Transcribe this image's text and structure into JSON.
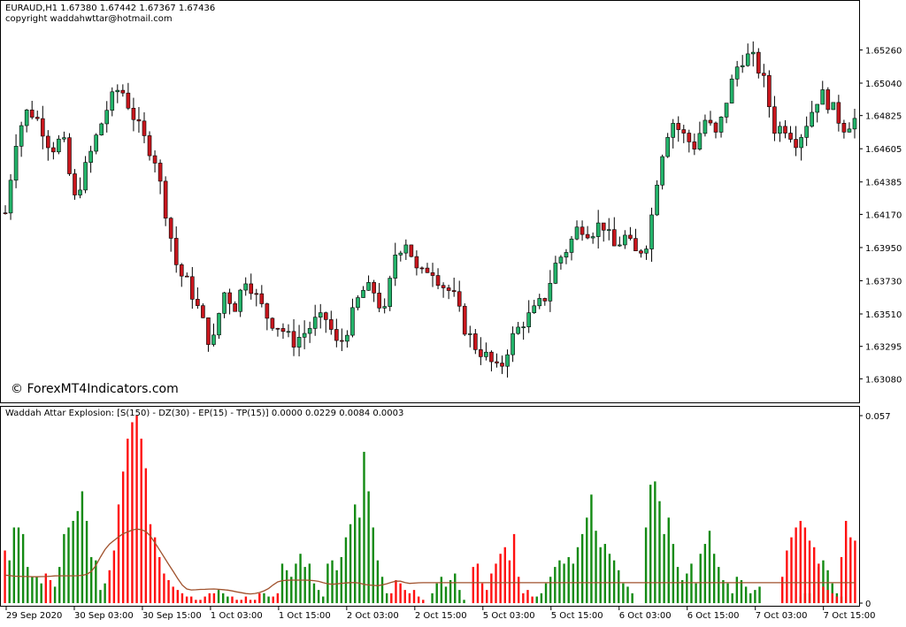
{
  "header": {
    "symbol_line": "EURAUD,H1  1.67380 1.67442 1.67367 1.67436",
    "copyright": "copyright waddahwttar@hotmail.com"
  },
  "watermark": "© ForexMT4Indicators.com",
  "indicator_label": "Waddah Attar Explosion: [S(150) - DZ(30) - EP(15) - TP(15)] 0.0000 0.0229 0.0084 0.0003",
  "colors": {
    "bull": "#23b36a",
    "bear": "#c8161d",
    "hist_up": "#138a13",
    "hist_down": "#ff1010",
    "explosion_line": "#a0522d",
    "wick": "#000000",
    "grid_frame": "#000000"
  },
  "chart_data": [
    {
      "type": "candlestick",
      "symbol": "EURAUD",
      "timeframe": "H1",
      "ylim": [
        1.63,
        1.6538
      ],
      "y_ticks": [
        "1.65260",
        "1.65040",
        "1.64825",
        "1.64605",
        "1.64385",
        "1.64170",
        "1.63950",
        "1.63730",
        "1.63510",
        "1.63295",
        "1.63080"
      ],
      "x_ticks": [
        "29 Sep 2020",
        "30 Sep 03:00",
        "30 Sep 15:00",
        "1 Oct 03:00",
        "1 Oct 15:00",
        "2 Oct 03:00",
        "2 Oct 15:00",
        "5 Oct 03:00",
        "5 Oct 15:00",
        "6 Oct 03:00",
        "6 Oct 15:00",
        "7 Oct 03:00",
        "7 Oct 15:00"
      ],
      "close_path": [
        1.6418,
        1.647,
        1.6487,
        1.6478,
        1.646,
        1.6468,
        1.6426,
        1.6448,
        1.647,
        1.649,
        1.6502,
        1.6485,
        1.6468,
        1.6455,
        1.6418,
        1.638,
        1.637,
        1.635,
        1.6328,
        1.6366,
        1.6356,
        1.6376,
        1.636,
        1.6347,
        1.6342,
        1.6332,
        1.6338,
        1.6346,
        1.6348,
        1.6328,
        1.6345,
        1.6366,
        1.6368,
        1.635,
        1.6392,
        1.64,
        1.6375,
        1.6383,
        1.6371,
        1.6364,
        1.6342,
        1.6329,
        1.6322,
        1.6312,
        1.6333,
        1.6345,
        1.6352,
        1.6362,
        1.6385,
        1.6395,
        1.641,
        1.6405,
        1.6412,
        1.6395,
        1.6402,
        1.639,
        1.64,
        1.6452,
        1.648,
        1.647,
        1.6462,
        1.648,
        1.6468,
        1.6498,
        1.652,
        1.6522,
        1.6508,
        1.6474,
        1.6475,
        1.6465,
        1.6481,
        1.6498,
        1.6488,
        1.6475,
        1.648
      ]
    },
    {
      "type": "bar",
      "name": "Waddah Attar Explosion",
      "ylim": [
        0,
        0.057
      ],
      "y_ticks": [
        "0.057",
        "0"
      ],
      "params": [
        "S(150)",
        "DZ(30)",
        "EP(15)",
        "TP(15)"
      ],
      "readout": [
        0.0,
        0.0229,
        0.0084,
        0.0003
      ],
      "trend_up": [
        0,
        0.013,
        0.023,
        0.023,
        0.021,
        0.011,
        0.008,
        0.008,
        0.006,
        0,
        0,
        0.005,
        0.011,
        0.021,
        0.023,
        0.025,
        0.028,
        0.034,
        0.025,
        0.014,
        0.013,
        0.004,
        0.006,
        0,
        0,
        0,
        0,
        0,
        0,
        0,
        0,
        0,
        0,
        0,
        0,
        0,
        0,
        0,
        0,
        0,
        0,
        0,
        0,
        0,
        0,
        0,
        0,
        0.004,
        0.003,
        0.002,
        0,
        0,
        0,
        0,
        0,
        0,
        0,
        0.003,
        0.002,
        0,
        0,
        0.012,
        0.01,
        0.008,
        0.012,
        0.015,
        0.011,
        0.012,
        0.006,
        0.004,
        0.002,
        0.012,
        0.013,
        0.01,
        0.014,
        0.02,
        0.024,
        0.03,
        0.026,
        0.046,
        0.034,
        0.023,
        0.013,
        0.008,
        0.003,
        0,
        0,
        0,
        0,
        0,
        0,
        0,
        0,
        0,
        0.003,
        0.006,
        0.008,
        0.005,
        0.007,
        0.009,
        0.004,
        0.001,
        0,
        0,
        0,
        0,
        0,
        0,
        0,
        0,
        0,
        0,
        0,
        0,
        0,
        0,
        0,
        0.002,
        0.003,
        0.006,
        0.008,
        0.011,
        0.013,
        0.012,
        0.014,
        0.012,
        0.017,
        0.021,
        0.026,
        0.033,
        0.022,
        0.017,
        0.018,
        0.015,
        0.013,
        0.01,
        0.006,
        0.005,
        0.003,
        0,
        0,
        0.023,
        0.036,
        0.037,
        0.031,
        0.021,
        0.026,
        0.018,
        0.011,
        0.007,
        0.009,
        0.012,
        0.006,
        0.015,
        0.018,
        0.022,
        0.015,
        0.011,
        0.007,
        0.006,
        0.003,
        0.008,
        0.007,
        0.005,
        0.003,
        0.004,
        0.005,
        0,
        0,
        0,
        0,
        0,
        0,
        0,
        0,
        0.002,
        0.003,
        0.003,
        0.006,
        0.011,
        0.013,
        0.01,
        0.006,
        0.003,
        0.002,
        0,
        0,
        0
      ],
      "trend_down": [
        0.016,
        0,
        0,
        0,
        0,
        0,
        0,
        0,
        0,
        0.009,
        0.007,
        0,
        0,
        0,
        0,
        0,
        0,
        0,
        0,
        0,
        0,
        0,
        0,
        0.01,
        0.016,
        0.03,
        0.04,
        0.05,
        0.055,
        0.057,
        0.05,
        0.041,
        0.024,
        0.02,
        0.014,
        0.009,
        0.007,
        0.005,
        0.004,
        0.003,
        0.002,
        0.002,
        0.001,
        0.001,
        0.002,
        0.003,
        0.003,
        0,
        0,
        0,
        0.002,
        0.001,
        0.001,
        0.002,
        0.001,
        0.001,
        0.003,
        0,
        0,
        0.002,
        0.003,
        0,
        0,
        0,
        0,
        0,
        0,
        0,
        0,
        0,
        0,
        0,
        0,
        0,
        0,
        0,
        0,
        0,
        0,
        0,
        0,
        0,
        0,
        0,
        0,
        0.003,
        0.007,
        0.006,
        0.004,
        0.003,
        0.004,
        0.002,
        0.001,
        0,
        0,
        0,
        0,
        0,
        0,
        0,
        0,
        0,
        0,
        0.011,
        0.012,
        0.006,
        0.004,
        0.009,
        0.012,
        0.015,
        0.017,
        0.013,
        0.021,
        0.008,
        0.003,
        0.004,
        0.002,
        0,
        0,
        0,
        0,
        0,
        0,
        0,
        0,
        0,
        0,
        0,
        0,
        0,
        0,
        0,
        0,
        0,
        0,
        0,
        0,
        0,
        0,
        0,
        0,
        0,
        0,
        0,
        0,
        0,
        0,
        0,
        0,
        0,
        0,
        0,
        0,
        0,
        0,
        0,
        0,
        0,
        0,
        0,
        0,
        0,
        0,
        0,
        0,
        0,
        0,
        0,
        0,
        0,
        0,
        0.008,
        0.016,
        0.02,
        0.023,
        0.025,
        0.023,
        0.019,
        0.017,
        0.012,
        0.005,
        0.004,
        0.003,
        0.002,
        0.014,
        0.025,
        0.02,
        0.019,
        0.018
      ],
      "explosion_line": [
        0.0085,
        0.0084,
        0.0082,
        0.0082,
        0.0081,
        0.0081,
        0.0081,
        0.008,
        0.008,
        0.0081,
        0.0081,
        0.0082,
        0.0083,
        0.0083,
        0.0083,
        0.0083,
        0.0083,
        0.0083,
        0.0084,
        0.0085,
        0.009,
        0.01,
        0.012,
        0.0145,
        0.0165,
        0.018,
        0.019,
        0.02,
        0.021,
        0.0215,
        0.022,
        0.0225,
        0.0225,
        0.0222,
        0.0215,
        0.02,
        0.018,
        0.016,
        0.014,
        0.012,
        0.01,
        0.008,
        0.006,
        0.0045,
        0.004,
        0.004,
        0.0041,
        0.0042,
        0.0042,
        0.0043,
        0.0043,
        0.0042,
        0.0041,
        0.004,
        0.0038,
        0.0035,
        0.0033,
        0.003,
        0.0028,
        0.0028,
        0.003,
        0.0033,
        0.0038,
        0.0045,
        0.0055,
        0.0064,
        0.0068,
        0.0069,
        0.007,
        0.007,
        0.007,
        0.007,
        0.007,
        0.0069,
        0.0068,
        0.0066,
        0.0062,
        0.0059,
        0.0057,
        0.0058,
        0.006,
        0.0061,
        0.0062,
        0.0063,
        0.0062,
        0.006,
        0.0056,
        0.0055,
        0.0054,
        0.0053,
        0.0055,
        0.0058,
        0.0062,
        0.0066,
        0.0068,
        0.0065,
        0.006,
        0.006,
        0.0061,
        0.0062,
        0.0062,
        0.0062,
        0.0062,
        0.0062,
        0.0062,
        0.0062,
        0.0062,
        0.0062,
        0.0062,
        0.0062,
        0.0062,
        0.0062,
        0.0062,
        0.0062,
        0.0062,
        0.0062,
        0.0062,
        0.0062,
        0.0062,
        0.0062,
        0.0062,
        0.0062,
        0.0062,
        0.0062,
        0.0062,
        0.0062,
        0.0062,
        0.0062,
        0.0062,
        0.0062,
        0.0062,
        0.0062,
        0.0062,
        0.0062,
        0.0062,
        0.0062,
        0.0062,
        0.0062,
        0.0062,
        0.0062,
        0.0062,
        0.0062,
        0.0062,
        0.0062,
        0.0062,
        0.0062,
        0.0062,
        0.0062,
        0.0062,
        0.0062,
        0.0062,
        0.0062,
        0.0062,
        0.0062,
        0.0062,
        0.0062,
        0.0062,
        0.0062,
        0.0062,
        0.0062,
        0.0062,
        0.0062,
        0.0062,
        0.0062,
        0.0062,
        0.0062,
        0.0062,
        0.0062,
        0.0062,
        0.0062,
        0.0062,
        0.0062,
        0.0062,
        0.0062,
        0.0062,
        0.0062,
        0.0062,
        0.0062,
        0.0062,
        0.0062,
        0.0062,
        0.0062,
        0.0062,
        0.0062,
        0.0062,
        0.0062,
        0.0062,
        0.0062,
        0.0062,
        0.0062,
        0.0062,
        0.0062,
        0.0062,
        0.0062,
        0.0062,
        0.0062,
        0.0062,
        0.0062,
        0.0062,
        0.0062,
        0.0062,
        0.0062,
        0.0062,
        0.0062
      ]
    }
  ]
}
